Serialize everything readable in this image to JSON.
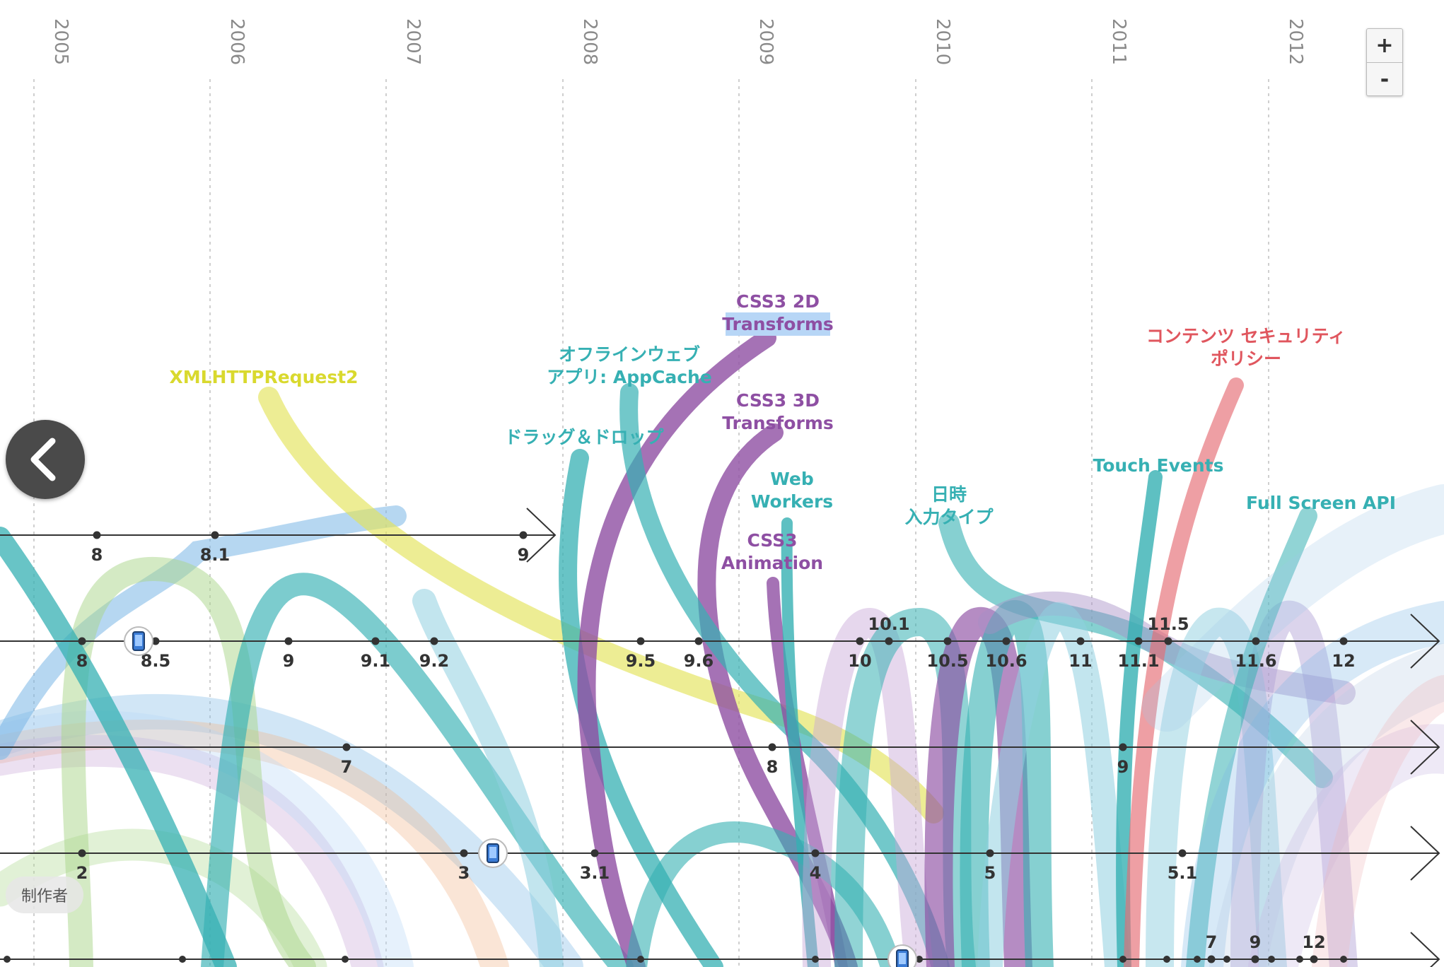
{
  "years": [
    "2005",
    "2006",
    "2007",
    "2008",
    "2009",
    "2010",
    "2011",
    "2012"
  ],
  "zoom": {
    "in_label": "+",
    "out_label": "-"
  },
  "back_button": {
    "icon": "chevron-left-icon"
  },
  "credits_label": "制作者",
  "mobile_icon": "mobile-phone-icon",
  "browsers": [
    {
      "id": "browser-row-1",
      "versions": [
        "8",
        "8.1",
        "9"
      ],
      "ends_with": "end-bar"
    },
    {
      "id": "browser-row-2",
      "versions": [
        "8",
        "8.5",
        "9",
        "9.1",
        "9.2",
        "9.5",
        "9.6",
        "10",
        "10.1",
        "10.5",
        "10.6",
        "11",
        "11.1",
        "11.5",
        "11.6",
        "12"
      ],
      "ends_with": "arrow"
    },
    {
      "id": "browser-row-3",
      "versions": [
        "7",
        "8",
        "9"
      ],
      "ends_with": "arrow"
    },
    {
      "id": "browser-row-4",
      "versions": [
        "2",
        "3",
        "3.1",
        "4",
        "5",
        "5.1"
      ],
      "ends_with": "arrow"
    },
    {
      "id": "browser-row-5",
      "versions": [
        "7",
        "9",
        "12"
      ],
      "ends_with": "arrow"
    }
  ],
  "features": [
    {
      "name": "XMLHTTPRequest2",
      "lines": [
        "XMLHTTPRequest2"
      ],
      "color": "#d9d92e"
    },
    {
      "name": "offline-appcache",
      "lines": [
        "オフラインウェブ",
        "アプリ: AppCache"
      ],
      "color": "#36b0b3"
    },
    {
      "name": "drag-and-drop",
      "lines": [
        "ドラッグ＆ドロップ"
      ],
      "color": "#36b0b3"
    },
    {
      "name": "css3-2d-transforms",
      "lines": [
        "CSS3 2D",
        "Transforms"
      ],
      "color": "#8e4fa3",
      "highlight": "#b7d6f6"
    },
    {
      "name": "css3-3d-transforms",
      "lines": [
        "CSS3 3D",
        "Transforms"
      ],
      "color": "#8e4fa3"
    },
    {
      "name": "web-workers",
      "lines": [
        "Web",
        "Workers"
      ],
      "color": "#36b0b3"
    },
    {
      "name": "css3-animation",
      "lines": [
        "CSS3",
        "Animation"
      ],
      "color": "#8e4fa3"
    },
    {
      "name": "date-input-types",
      "lines": [
        "日時",
        "入力タイプ"
      ],
      "color": "#36b0b3"
    },
    {
      "name": "touch-events",
      "lines": [
        "Touch Events"
      ],
      "color": "#36b0b3"
    },
    {
      "name": "content-security-policy",
      "lines": [
        "コンテンツ セキュリティ",
        "ポリシー"
      ],
      "color": "#e0565e"
    },
    {
      "name": "full-screen-api",
      "lines": [
        "Full Screen API"
      ],
      "color": "#36b0b3"
    }
  ]
}
